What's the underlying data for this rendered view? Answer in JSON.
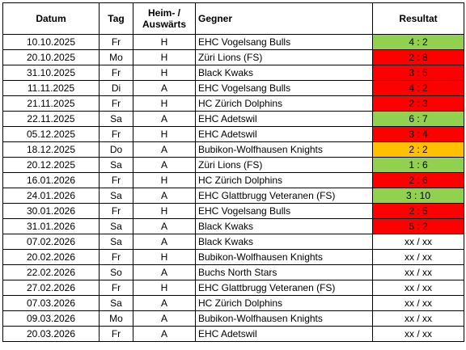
{
  "header": {
    "date": "Datum",
    "day": "Tag",
    "homeaway_line1": "Heim- /",
    "homeaway_line2": "Auswärts",
    "opponent": "Gegner",
    "result": "Resultat"
  },
  "colors": {
    "win": "#92d050",
    "loss": "#ff0000",
    "draw": "#ffc000",
    "open": "#ffffff"
  },
  "rows": [
    {
      "date": "10.10.2025",
      "day": "Fr",
      "ha": "H",
      "opponent": "EHC Vogelsang Bulls",
      "result": "4 : 2",
      "status": "win"
    },
    {
      "date": "20.10.2025",
      "day": "Mo",
      "ha": "H",
      "opponent": "Züri Lions (FS)",
      "result": "2 : 8",
      "status": "loss"
    },
    {
      "date": "31.10.2025",
      "day": "Fr",
      "ha": "H",
      "opponent": "Black Kwaks",
      "result": "3 : 5",
      "status": "loss"
    },
    {
      "date": "11.11.2025",
      "day": "Di",
      "ha": "A",
      "opponent": "EHC Vogelsang Bulls",
      "result": "4 : 2",
      "status": "loss"
    },
    {
      "date": "21.11.2025",
      "day": "Fr",
      "ha": "H",
      "opponent": "HC Zürich Dolphins",
      "result": "2 : 3",
      "status": "loss"
    },
    {
      "date": "22.11.2025",
      "day": "Sa",
      "ha": "A",
      "opponent": "EHC Adetswil",
      "result": "6 : 7",
      "status": "win"
    },
    {
      "date": "05.12.2025",
      "day": "Fr",
      "ha": "H",
      "opponent": "EHC Adetswil",
      "result": "3 : 4",
      "status": "loss"
    },
    {
      "date": "18.12.2025",
      "day": "Do",
      "ha": "A",
      "opponent": "Bubikon-Wolfhausen Knights",
      "result": "2 : 2",
      "status": "draw"
    },
    {
      "date": "20.12.2025",
      "day": "Sa",
      "ha": "A",
      "opponent": "Züri Lions (FS)",
      "result": "1 : 6",
      "status": "win"
    },
    {
      "date": "16.01.2026",
      "day": "Fr",
      "ha": "H",
      "opponent": "HC Zürich Dolphins",
      "result": "2 : 6",
      "status": "loss"
    },
    {
      "date": "24.01.2026",
      "day": "Sa",
      "ha": "A",
      "opponent": "EHC Glattbrugg Veteranen (FS)",
      "result": "3 : 10",
      "status": "win"
    },
    {
      "date": "30.01.2026",
      "day": "Fr",
      "ha": "H",
      "opponent": "EHC Vogelsang Bulls",
      "result": "2 : 5",
      "status": "loss"
    },
    {
      "date": "31.01.2026",
      "day": "Sa",
      "ha": "A",
      "opponent": "Black Kwaks",
      "result": "5 : 2",
      "status": "loss"
    },
    {
      "date": "07.02.2026",
      "day": "Sa",
      "ha": "A",
      "opponent": "Black Kwaks",
      "result": "xx / xx",
      "status": "open"
    },
    {
      "date": "20.02.2026",
      "day": "Fr",
      "ha": "H",
      "opponent": "Bubikon-Wolfhausen Knights",
      "result": "xx / xx",
      "status": "open"
    },
    {
      "date": "22.02.2026",
      "day": "So",
      "ha": "A",
      "opponent": "Buchs North Stars",
      "result": "xx / xx",
      "status": "open"
    },
    {
      "date": "27.02.2026",
      "day": "Fr",
      "ha": "H",
      "opponent": "EHC Glattbrugg Veteranen (FS)",
      "result": "xx / xx",
      "status": "open"
    },
    {
      "date": "07.03.2026",
      "day": "Sa",
      "ha": "A",
      "opponent": "HC Zürich Dolphins",
      "result": "xx / xx",
      "status": "open"
    },
    {
      "date": "09.03.2026",
      "day": "Mo",
      "ha": "A",
      "opponent": "Bubikon-Wolfhausen Knights",
      "result": "xx / xx",
      "status": "open"
    },
    {
      "date": "20.03.2026",
      "day": "Fr",
      "ha": "A",
      "opponent": "EHC Adetswil",
      "result": "xx / xx",
      "status": "open"
    }
  ]
}
